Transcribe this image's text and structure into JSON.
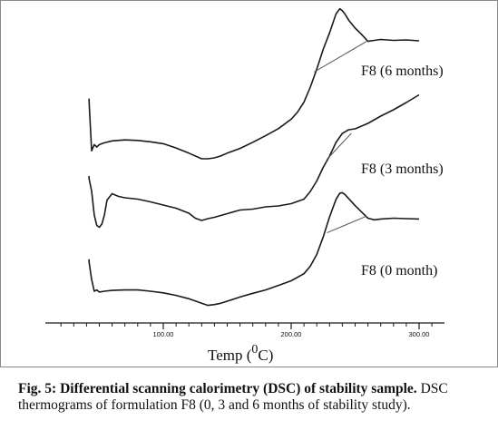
{
  "chart_data": {
    "type": "line",
    "xlabel": "Temp (",
    "xlabel_sup": "0",
    "xlabel_unit": "C)",
    "xlim": [
      20,
      310
    ],
    "x_ticks": [
      100,
      200,
      300
    ],
    "x_tick_labels": [
      "100.00",
      "200.00",
      "300.00"
    ],
    "ylabel": "",
    "grid": false,
    "series": [
      {
        "name": "F8 (6 months)",
        "x": [
          42,
          44,
          46,
          48,
          50,
          54,
          60,
          70,
          80,
          90,
          100,
          110,
          120,
          130,
          135,
          140,
          145,
          150,
          160,
          170,
          180,
          190,
          200,
          205,
          210,
          215,
          220,
          225,
          230,
          235,
          238,
          240,
          242,
          245,
          250,
          255,
          260,
          265,
          270,
          280,
          290,
          300
        ],
        "y": [
          -0.3,
          -1.35,
          -1.22,
          -1.27,
          -1.22,
          -1.18,
          -1.14,
          -1.12,
          -1.13,
          -1.16,
          -1.2,
          -1.29,
          -1.4,
          -1.52,
          -1.52,
          -1.5,
          -1.46,
          -1.4,
          -1.3,
          -1.17,
          -1.03,
          -0.88,
          -0.68,
          -0.53,
          -0.32,
          0.0,
          0.38,
          0.8,
          1.15,
          1.55,
          1.66,
          1.62,
          1.55,
          1.42,
          1.25,
          1.12,
          0.97,
          0.99,
          1.01,
          0.99,
          1.0,
          0.98
        ],
        "baseline": {
          "x": [
            218,
            259
          ],
          "y": [
            0.32,
            0.97
          ]
        }
      },
      {
        "name": "F8 (3 months)",
        "x": [
          42,
          44,
          46,
          48,
          50,
          52,
          54,
          56,
          60,
          65,
          70,
          80,
          90,
          100,
          110,
          120,
          125,
          130,
          135,
          140,
          150,
          160,
          170,
          180,
          190,
          200,
          210,
          215,
          220,
          225,
          230,
          235,
          240,
          245,
          250,
          260,
          270,
          280,
          290,
          300
        ],
        "y": [
          -0.3,
          -0.57,
          -1.1,
          -1.33,
          -1.37,
          -1.3,
          -1.1,
          -0.77,
          -0.63,
          -0.69,
          -0.72,
          -0.75,
          -0.81,
          -0.88,
          -0.95,
          -1.06,
          -1.17,
          -1.22,
          -1.18,
          -1.15,
          -1.07,
          -0.99,
          -0.97,
          -0.92,
          -0.9,
          -0.85,
          -0.75,
          -0.58,
          -0.35,
          -0.05,
          0.2,
          0.5,
          0.7,
          0.78,
          0.8,
          0.92,
          1.08,
          1.22,
          1.38,
          1.55
        ],
        "baseline": {
          "x": [
            228,
            247
          ],
          "y": [
            0.13,
            0.7
          ]
        }
      },
      {
        "name": "F8 (0 month)",
        "x": [
          42,
          44,
          46,
          48,
          50,
          54,
          60,
          70,
          80,
          90,
          100,
          110,
          120,
          130,
          135,
          140,
          145,
          150,
          160,
          170,
          180,
          190,
          200,
          210,
          215,
          220,
          225,
          230,
          235,
          238,
          240,
          242,
          245,
          250,
          255,
          260,
          265,
          270,
          280,
          290,
          300
        ],
        "y": [
          -0.3,
          -0.72,
          -1.0,
          -0.97,
          -1.02,
          -1.0,
          -0.98,
          -0.97,
          -0.97,
          -1.0,
          -1.04,
          -1.1,
          -1.18,
          -1.29,
          -1.34,
          -1.32,
          -1.29,
          -1.24,
          -1.14,
          -1.05,
          -0.97,
          -0.86,
          -0.75,
          -0.58,
          -0.4,
          -0.12,
          0.3,
          0.78,
          1.2,
          1.35,
          1.36,
          1.32,
          1.22,
          1.05,
          0.9,
          0.75,
          0.71,
          0.73,
          0.75,
          0.74,
          0.73
        ],
        "baseline": {
          "x": [
            228,
            259
          ],
          "y": [
            0.4,
            0.8
          ]
        }
      }
    ]
  },
  "caption": {
    "label": "Fig. 5:",
    "title": " Differential scanning calorimetry (DSC) of stability sample.",
    "text": "DSC thermograms of formulation F8 (0, 3 and 6 months of stability study)."
  },
  "colors": {
    "curve": "#1a1a1a",
    "baseline": "#555555",
    "axis": "#1a1a1a",
    "text": "#111111"
  }
}
